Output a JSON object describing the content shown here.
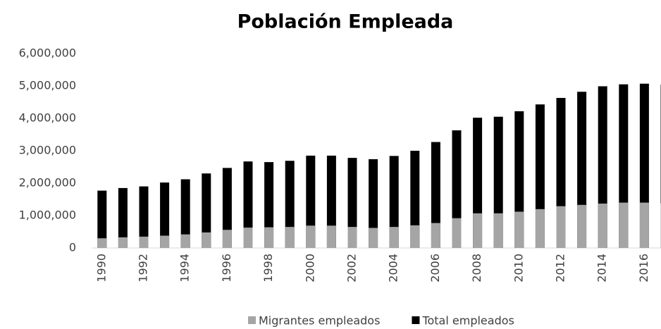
{
  "chart_data": {
    "type": "bar",
    "title": "Población Empleada",
    "categories": [
      "1990",
      null,
      "1992",
      null,
      "1994",
      null,
      "1996",
      null,
      "1998",
      null,
      "2000",
      null,
      "2002",
      null,
      "2004",
      null,
      "2006",
      null,
      "2008",
      null,
      "2010",
      null,
      "2012",
      null,
      "2014",
      null,
      "2016",
      null
    ],
    "series": [
      {
        "name": "Total empleados",
        "color": "#000000",
        "values": [
          1770000,
          1850000,
          1900000,
          2020000,
          2120000,
          2300000,
          2470000,
          2670000,
          2650000,
          2690000,
          2850000,
          2850000,
          2780000,
          2740000,
          2840000,
          3000000,
          3270000,
          3630000,
          4020000,
          4050000,
          4220000,
          4430000,
          4630000,
          4820000,
          4990000,
          5050000,
          5070000,
          5040000
        ]
      },
      {
        "name": "Migrantes empleados",
        "color": "#a5a5a5",
        "values": [
          300000,
          330000,
          350000,
          380000,
          420000,
          480000,
          560000,
          630000,
          640000,
          650000,
          690000,
          690000,
          650000,
          620000,
          650000,
          700000,
          770000,
          920000,
          1070000,
          1070000,
          1120000,
          1200000,
          1290000,
          1330000,
          1370000,
          1400000,
          1400000,
          1380000
        ]
      }
    ],
    "ylim": [
      0,
      6000000
    ],
    "yticks": [
      0,
      {
        "value": 1000000,
        "label": "1,000,000"
      },
      {
        "value": 2000000,
        "label": "2,000,000"
      },
      {
        "value": 3000000,
        "label": "3,000,000"
      },
      {
        "value": 4000000,
        "label": "4,000,000"
      },
      {
        "value": 5000000,
        "label": "5,000,000"
      },
      {
        "value": 6000000,
        "label": "6,000,000"
      }
    ],
    "grid": false,
    "legend": "bottom"
  }
}
